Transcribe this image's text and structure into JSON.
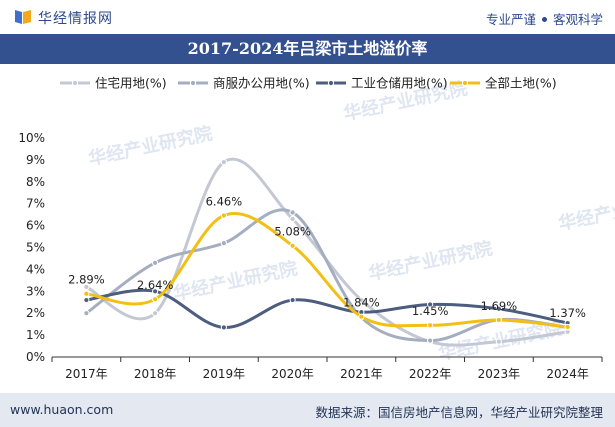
{
  "header": {
    "site_name": "华经情报网",
    "slogan_left": "专业严谨",
    "slogan_right": "客观科学"
  },
  "footer": {
    "url": "www.huaon.com",
    "source": "数据来源：国信房地产信息网，华经产业研究院整理"
  },
  "watermark": "华经产业研究院",
  "colors": {
    "title_bar": "#33508f",
    "footer_bg": "#e4e9f1",
    "accent_blue": "#2e4a8c"
  },
  "chart_data": {
    "type": "line",
    "title": "2017-2024年吕梁市土地溢价率",
    "categories": [
      "2017年",
      "2018年",
      "2019年",
      "2020年",
      "2021年",
      "2022年",
      "2023年",
      "2024年"
    ],
    "y_ticks": [
      "0%",
      "1%",
      "2%",
      "3%",
      "4%",
      "5%",
      "6%",
      "7%",
      "8%",
      "9%",
      "10%"
    ],
    "ylim": [
      0,
      10
    ],
    "y_unit": "%",
    "legend_position": "top",
    "grid": false,
    "series": [
      {
        "name": "住宅用地(%)",
        "color": "#c3c8d4",
        "values": [
          3.2,
          2.0,
          8.9,
          6.3,
          2.6,
          0.7,
          0.7,
          1.15
        ],
        "labels": null
      },
      {
        "name": "商服办公用地(%)",
        "color": "#a5aec0",
        "values": [
          2.0,
          4.3,
          5.2,
          6.6,
          1.8,
          0.75,
          1.7,
          1.35
        ],
        "labels": null
      },
      {
        "name": "工业仓储用地(%)",
        "color": "#4c5d80",
        "values": [
          2.6,
          3.0,
          1.35,
          2.6,
          2.05,
          2.4,
          2.2,
          1.55
        ],
        "labels": null
      },
      {
        "name": "全部土地(%)",
        "color": "#f2c014",
        "values": [
          2.89,
          2.64,
          6.46,
          5.08,
          1.84,
          1.45,
          1.69,
          1.37
        ],
        "labels": [
          "2.89%",
          "2.64%",
          "6.46%",
          "5.08%",
          "1.84%",
          "1.45%",
          "1.69%",
          "1.37%"
        ]
      }
    ]
  }
}
